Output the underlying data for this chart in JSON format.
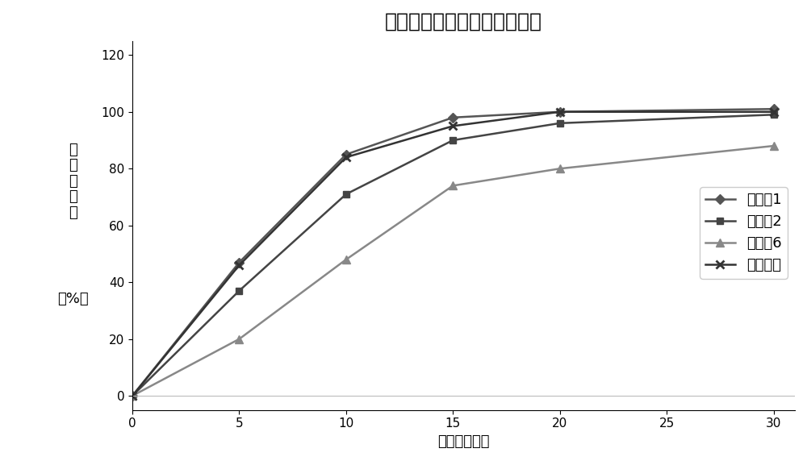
{
  "title": "溶出曲线对比图（恩格列净）",
  "xlabel": "时间（分钟）",
  "ylabel_lines": [
    "累",
    "积",
    "溶",
    "出",
    "度"
  ],
  "ylabel_unit": "（%）",
  "xlim": [
    0,
    31
  ],
  "ylim": [
    -5,
    125
  ],
  "xticks": [
    0,
    5,
    10,
    15,
    20,
    25,
    30
  ],
  "yticks": [
    0,
    20,
    40,
    60,
    80,
    100,
    120
  ],
  "series": [
    {
      "label": "实施例1",
      "x": [
        0,
        5,
        10,
        15,
        20,
        30
      ],
      "y": [
        0,
        47,
        85,
        98,
        100,
        101
      ],
      "color": "#555555",
      "marker": "D",
      "linewidth": 1.8,
      "markersize": 6
    },
    {
      "label": "实施例2",
      "x": [
        0,
        5,
        10,
        15,
        20,
        30
      ],
      "y": [
        0,
        37,
        71,
        90,
        96,
        99
      ],
      "color": "#444444",
      "marker": "s",
      "linewidth": 1.8,
      "markersize": 6
    },
    {
      "label": "对比例6",
      "x": [
        0,
        5,
        10,
        15,
        20,
        30
      ],
      "y": [
        0,
        20,
        48,
        74,
        80,
        88
      ],
      "color": "#888888",
      "marker": "^",
      "linewidth": 1.8,
      "markersize": 7
    },
    {
      "label": "市场在售",
      "x": [
        0,
        5,
        10,
        15,
        20,
        30
      ],
      "y": [
        0,
        46,
        84,
        95,
        100,
        100
      ],
      "color": "#333333",
      "marker": "x",
      "linewidth": 1.8,
      "markersize": 7,
      "markeredgewidth": 2
    }
  ],
  "background_color": "#ffffff",
  "title_fontsize": 18,
  "label_fontsize": 13,
  "tick_fontsize": 11,
  "legend_fontsize": 13
}
